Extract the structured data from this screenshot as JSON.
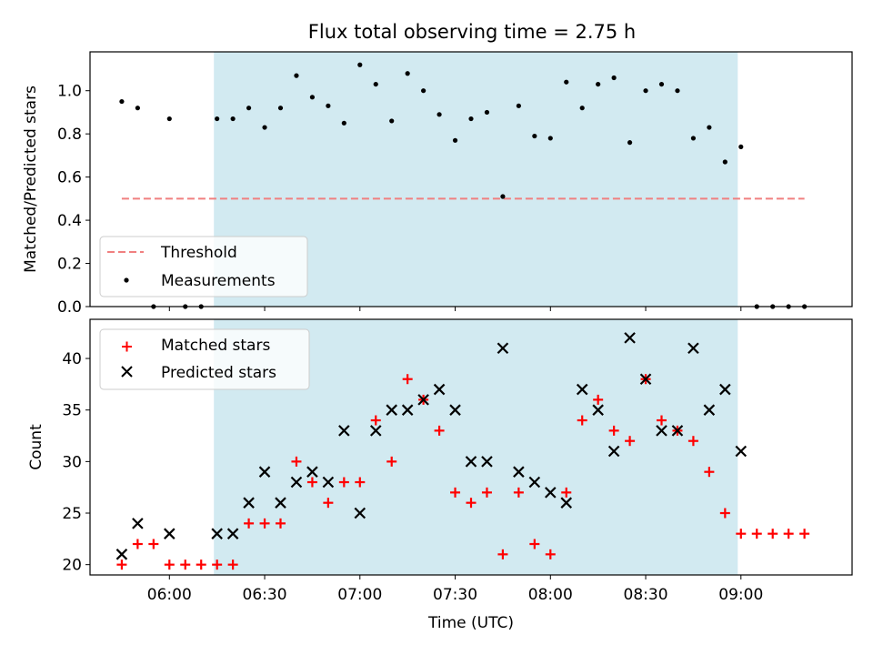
{
  "title": "Flux total observing time = 2.75 h",
  "colors": {
    "shade": "#add8e6",
    "threshold": "#f08080",
    "measurement": "#000000",
    "matched": "#ff0000",
    "predicted": "#000000"
  },
  "chart_data": [
    {
      "type": "scatter",
      "panel": "top",
      "ylabel": "Matched/Predicted stars",
      "xlabel": "",
      "ylim": [
        0,
        1.18
      ],
      "yticks": [
        0.0,
        0.2,
        0.4,
        0.6,
        0.8,
        1.0
      ],
      "ytick_labels": [
        "0.0",
        "0.2",
        "0.4",
        "0.6",
        "0.8",
        "1.0"
      ],
      "shaded_span": [
        "06:14",
        "08:59"
      ],
      "threshold": {
        "label": "Threshold",
        "value": 0.5,
        "x_range": [
          "05:45",
          "09:20"
        ]
      },
      "legend": {
        "loc": "lower-left",
        "entries": [
          "Threshold",
          "Measurements"
        ]
      },
      "series": [
        {
          "name": "Measurements",
          "x": [
            "05:45",
            "05:50",
            "05:55",
            "06:00",
            "06:05",
            "06:10",
            "06:15",
            "06:20",
            "06:25",
            "06:30",
            "06:35",
            "06:40",
            "06:45",
            "06:50",
            "06:55",
            "07:00",
            "07:05",
            "07:10",
            "07:15",
            "07:20",
            "07:25",
            "07:30",
            "07:35",
            "07:40",
            "07:45",
            "07:50",
            "07:55",
            "08:00",
            "08:05",
            "08:10",
            "08:15",
            "08:20",
            "08:25",
            "08:30",
            "08:35",
            "08:40",
            "08:45",
            "08:50",
            "08:55",
            "09:00",
            "09:05",
            "09:10",
            "09:15",
            "09:20"
          ],
          "y": [
            0.95,
            0.92,
            0.0,
            0.87,
            0.0,
            0.0,
            0.87,
            0.87,
            0.92,
            0.83,
            0.92,
            1.07,
            0.97,
            0.93,
            0.85,
            1.12,
            1.03,
            0.86,
            1.08,
            1.0,
            0.89,
            0.77,
            0.87,
            0.9,
            0.51,
            0.93,
            0.79,
            0.78,
            1.04,
            0.92,
            1.03,
            1.06,
            0.76,
            1.0,
            1.03,
            1.0,
            0.78,
            0.83,
            0.67,
            0.74,
            0.0,
            0.0,
            0.0,
            0.0
          ]
        }
      ]
    },
    {
      "type": "scatter",
      "panel": "bottom",
      "xlabel": "Time (UTC)",
      "ylabel": "Count",
      "ylim": [
        19,
        43.8
      ],
      "yticks": [
        20,
        25,
        30,
        35,
        40
      ],
      "ytick_labels": [
        "20",
        "25",
        "30",
        "35",
        "40"
      ],
      "xlim": [
        "05:35",
        "09:35"
      ],
      "xticks": [
        "06:00",
        "06:30",
        "07:00",
        "07:30",
        "08:00",
        "08:30",
        "09:00"
      ],
      "xtick_labels": [
        "06:00",
        "06:30",
        "07:00",
        "07:30",
        "08:00",
        "08:30",
        "09:00"
      ],
      "shaded_span": [
        "06:14",
        "08:59"
      ],
      "legend": {
        "loc": "upper-left",
        "entries": [
          "Matched stars",
          "Predicted stars"
        ]
      },
      "series": [
        {
          "name": "Matched stars",
          "marker": "plus",
          "x": [
            "05:45",
            "05:50",
            "05:55",
            "06:00",
            "06:05",
            "06:10",
            "06:15",
            "06:20",
            "06:25",
            "06:30",
            "06:35",
            "06:40",
            "06:45",
            "06:50",
            "06:55",
            "07:00",
            "07:05",
            "07:10",
            "07:15",
            "07:20",
            "07:25",
            "07:30",
            "07:35",
            "07:40",
            "07:45",
            "07:50",
            "07:55",
            "08:00",
            "08:05",
            "08:10",
            "08:15",
            "08:20",
            "08:25",
            "08:30",
            "08:35",
            "08:40",
            "08:45",
            "08:50",
            "08:55",
            "09:00",
            "09:05",
            "09:10",
            "09:15",
            "09:20"
          ],
          "y": [
            20,
            22,
            22,
            20,
            20,
            20,
            20,
            20,
            24,
            24,
            24,
            30,
            28,
            26,
            28,
            28,
            34,
            30,
            38,
            36,
            33,
            27,
            26,
            27,
            21,
            27,
            22,
            21,
            27,
            34,
            36,
            33,
            32,
            38,
            34,
            33,
            32,
            29,
            25,
            23,
            23,
            23,
            23,
            23
          ]
        },
        {
          "name": "Predicted stars",
          "marker": "x",
          "x": [
            "05:45",
            "05:50",
            "06:00",
            "06:15",
            "06:20",
            "06:25",
            "06:30",
            "06:35",
            "06:40",
            "06:45",
            "06:50",
            "06:55",
            "07:00",
            "07:05",
            "07:10",
            "07:15",
            "07:20",
            "07:25",
            "07:30",
            "07:35",
            "07:40",
            "07:45",
            "07:50",
            "07:55",
            "08:00",
            "08:05",
            "08:10",
            "08:15",
            "08:20",
            "08:25",
            "08:30",
            "08:35",
            "08:40",
            "08:45",
            "08:50",
            "08:55",
            "09:00"
          ],
          "y": [
            21,
            24,
            23,
            23,
            23,
            26,
            29,
            26,
            28,
            29,
            28,
            33,
            25,
            33,
            35,
            35,
            36,
            37,
            35,
            30,
            30,
            41,
            29,
            28,
            27,
            26,
            37,
            35,
            31,
            42,
            38,
            33,
            33,
            41,
            35,
            37,
            31
          ]
        }
      ]
    }
  ]
}
